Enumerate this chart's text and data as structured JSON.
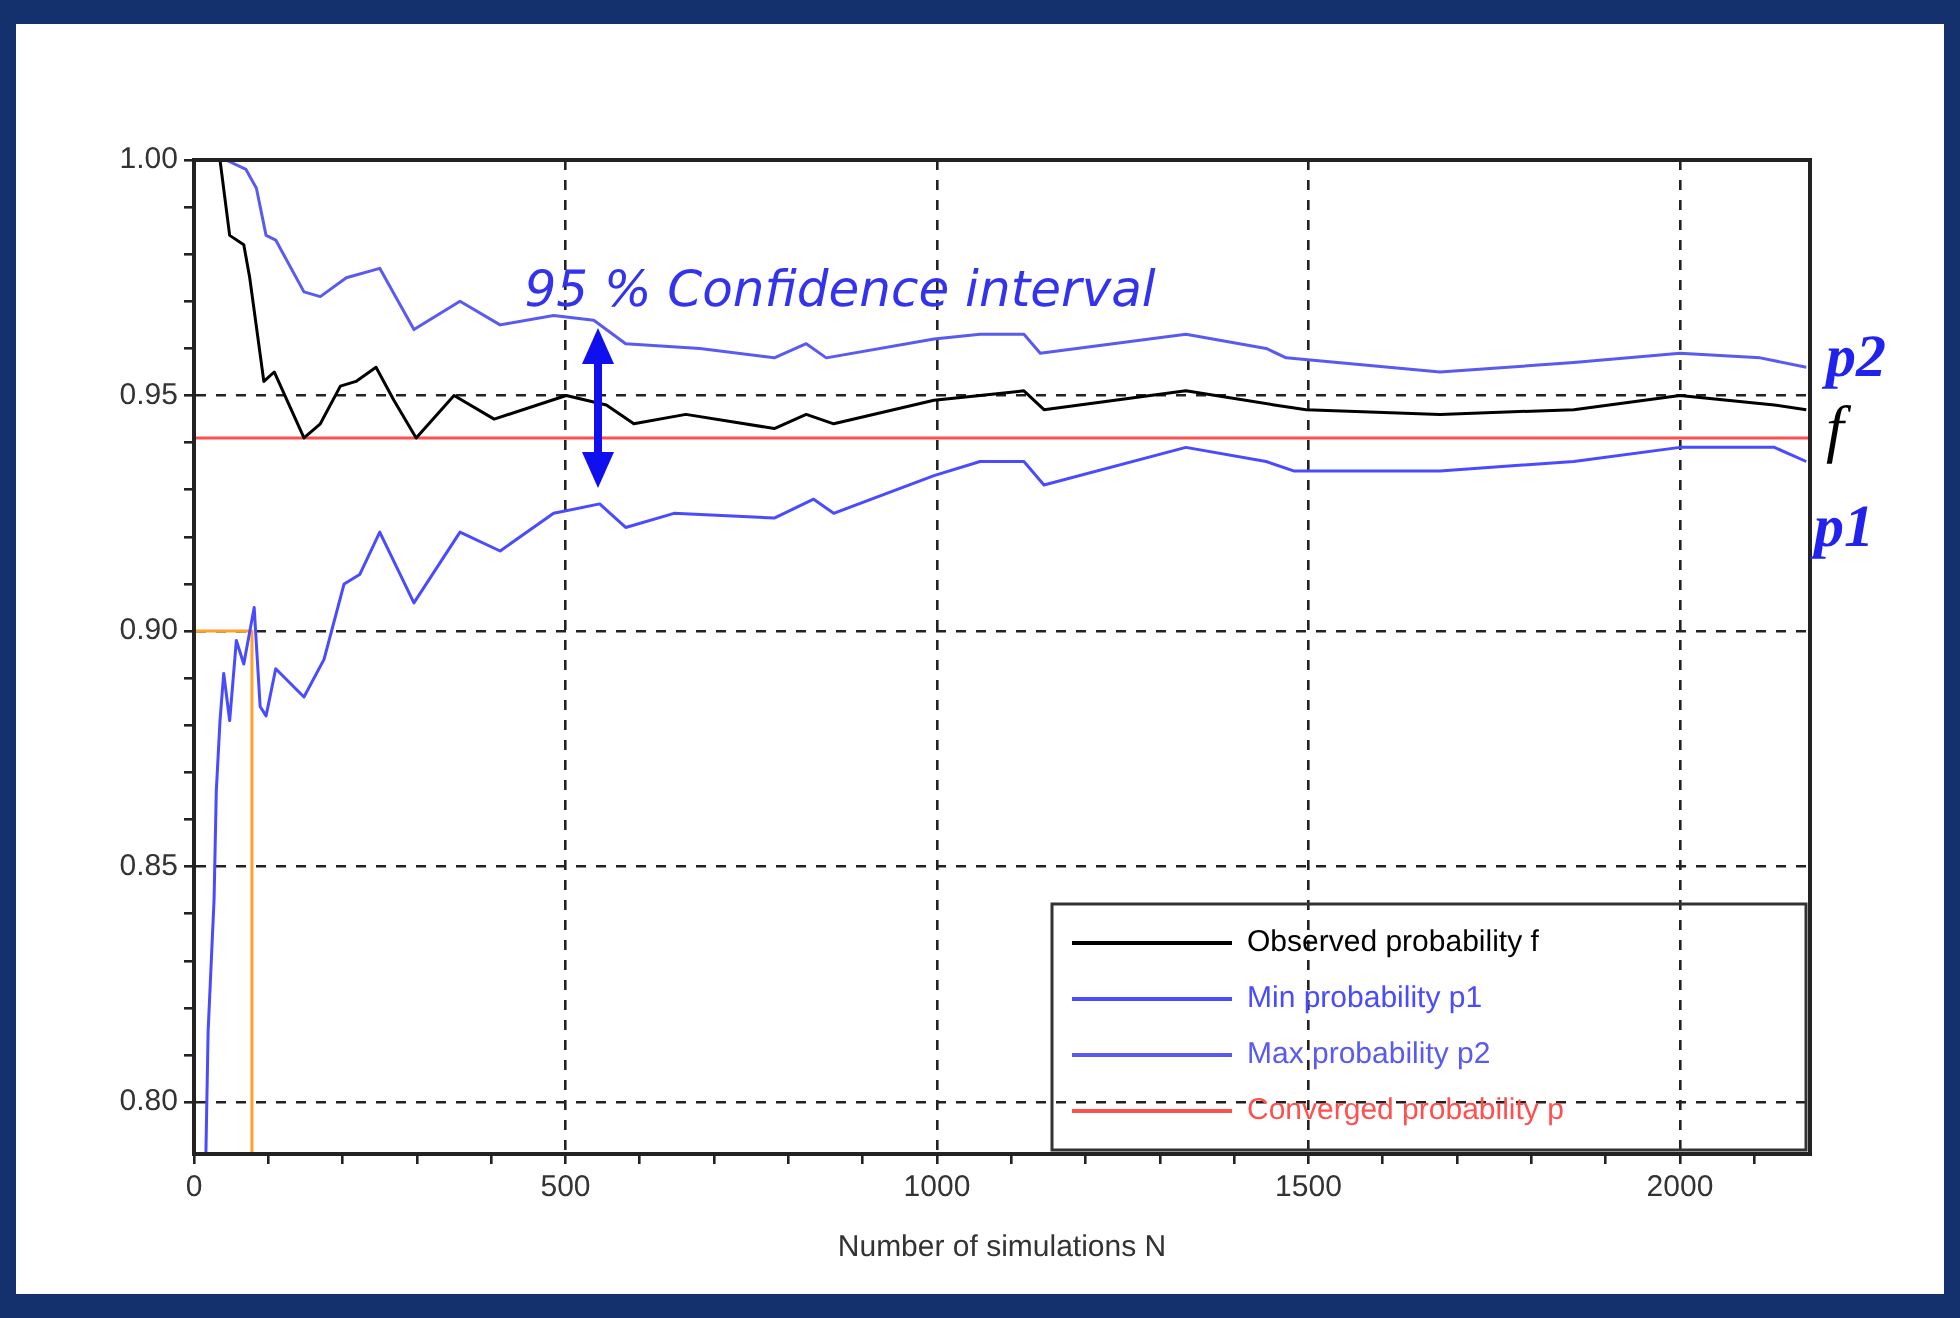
{
  "chart_data": {
    "type": "line",
    "xlabel": "Number of simulations N",
    "xlim": [
      0,
      2175
    ],
    "ylim": [
      0.789,
      1.0
    ],
    "xticks": [
      0,
      {
        "value": 100,
        "label": null
      },
      {
        "value": 200,
        "label": null
      },
      {
        "value": 300,
        "label": null
      },
      {
        "value": 400,
        "label": null
      },
      500,
      {
        "value": 600,
        "label": null
      },
      {
        "value": 700,
        "label": null
      },
      {
        "value": 800,
        "label": null
      },
      {
        "value": 900,
        "label": null
      },
      1000,
      {
        "value": 1100,
        "label": null
      },
      {
        "value": 1200,
        "label": null
      },
      {
        "value": 1300,
        "label": null
      },
      {
        "value": 1400,
        "label": null
      },
      1500,
      {
        "value": 1600,
        "label": null
      },
      {
        "value": 1700,
        "label": null
      },
      {
        "value": 1800,
        "label": null
      },
      {
        "value": 1900,
        "label": null
      },
      2000,
      {
        "value": 2100,
        "label": null
      }
    ],
    "yticks": [
      {
        "value": 0.8,
        "label": "0.80"
      },
      {
        "value": 0.81,
        "label": null
      },
      {
        "value": 0.82,
        "label": null
      },
      {
        "value": 0.83,
        "label": null
      },
      {
        "value": 0.84,
        "label": null
      },
      {
        "value": 0.85,
        "label": "0.85"
      },
      {
        "value": 0.86,
        "label": null
      },
      {
        "value": 0.87,
        "label": null
      },
      {
        "value": 0.88,
        "label": null
      },
      {
        "value": 0.89,
        "label": null
      },
      {
        "value": 0.9,
        "label": "0.90"
      },
      {
        "value": 0.91,
        "label": null
      },
      {
        "value": 0.92,
        "label": null
      },
      {
        "value": 0.93,
        "label": null
      },
      {
        "value": 0.94,
        "label": null
      },
      {
        "value": 0.95,
        "label": "0.95"
      },
      {
        "value": 0.96,
        "label": null
      },
      {
        "value": 0.97,
        "label": null
      },
      {
        "value": 0.98,
        "label": null
      },
      {
        "value": 0.99,
        "label": null
      },
      {
        "value": 1.0,
        "label": "1.00"
      }
    ],
    "grid": true,
    "legend": "bottom right",
    "marker": "none",
    "line_style": "solid",
    "series": [
      {
        "name": "Observed probability f",
        "color": "#000000",
        "x": [
          35,
          48,
          67,
          75,
          94,
          108,
          148,
          170,
          197,
          218,
          245,
          269,
          299,
          350,
          404,
          501,
          555,
          592,
          662,
          781,
          824,
          861,
          996,
          1058,
          1117,
          1144,
          1335,
          1454,
          1497,
          1677,
          1857,
          2000,
          2127,
          2170
        ],
        "values": [
          1.0,
          0.984,
          0.982,
          0.975,
          0.953,
          0.955,
          0.941,
          0.944,
          0.952,
          0.953,
          0.956,
          0.949,
          0.941,
          0.95,
          0.945,
          0.95,
          0.948,
          0.944,
          0.946,
          0.943,
          0.946,
          0.944,
          0.949,
          0.95,
          0.951,
          0.947,
          0.951,
          0.948,
          0.947,
          0.946,
          0.947,
          0.95,
          0.948,
          0.947
        ]
      },
      {
        "name": "Min probability p1",
        "color": "#4a4aff",
        "x": [
          16,
          19,
          27,
          30,
          35,
          40,
          48,
          57,
          67,
          81,
          89,
          97,
          110,
          148,
          175,
          202,
          223,
          250,
          296,
          358,
          412,
          484,
          546,
          581,
          646,
          781,
          834,
          861,
          996,
          1058,
          1117,
          1144,
          1335,
          1443,
          1480,
          1677,
          1857,
          2000,
          2127,
          2170
        ],
        "values": [
          0.789,
          0.815,
          0.843,
          0.866,
          0.881,
          0.891,
          0.881,
          0.898,
          0.893,
          0.905,
          0.884,
          0.882,
          0.892,
          0.886,
          0.894,
          0.91,
          0.912,
          0.921,
          0.906,
          0.921,
          0.917,
          0.925,
          0.927,
          0.922,
          0.925,
          0.924,
          0.928,
          0.925,
          0.933,
          0.936,
          0.936,
          0.931,
          0.939,
          0.936,
          0.934,
          0.934,
          0.936,
          0.939,
          0.939,
          0.936
        ]
      },
      {
        "name": "Max probability p2",
        "color": "#5a5af0",
        "x": [
          43,
          70,
          84,
          97,
          110,
          148,
          170,
          205,
          250,
          296,
          358,
          412,
          484,
          538,
          581,
          681,
          781,
          824,
          851,
          996,
          1058,
          1117,
          1139,
          1335,
          1443,
          1470,
          1677,
          1857,
          2000,
          2108,
          2170
        ],
        "values": [
          1.0,
          0.998,
          0.994,
          0.984,
          0.983,
          0.972,
          0.971,
          0.975,
          0.977,
          0.964,
          0.97,
          0.965,
          0.967,
          0.966,
          0.961,
          0.96,
          0.958,
          0.961,
          0.958,
          0.962,
          0.963,
          0.963,
          0.959,
          0.963,
          0.96,
          0.958,
          0.955,
          0.957,
          0.959,
          0.958,
          0.956
        ]
      },
      {
        "name": "Converged probability p",
        "color": "#ff5050",
        "x": [
          0,
          2175
        ],
        "values": [
          0.941,
          0.941
        ]
      },
      {
        "color": "#ffa030",
        "x": [
          0,
          78,
          78
        ],
        "values": [
          0.9,
          0.9,
          0.789
        ]
      }
    ],
    "annotations": [
      "95 % Confidence interval",
      "p2",
      "f",
      "p1"
    ]
  }
}
